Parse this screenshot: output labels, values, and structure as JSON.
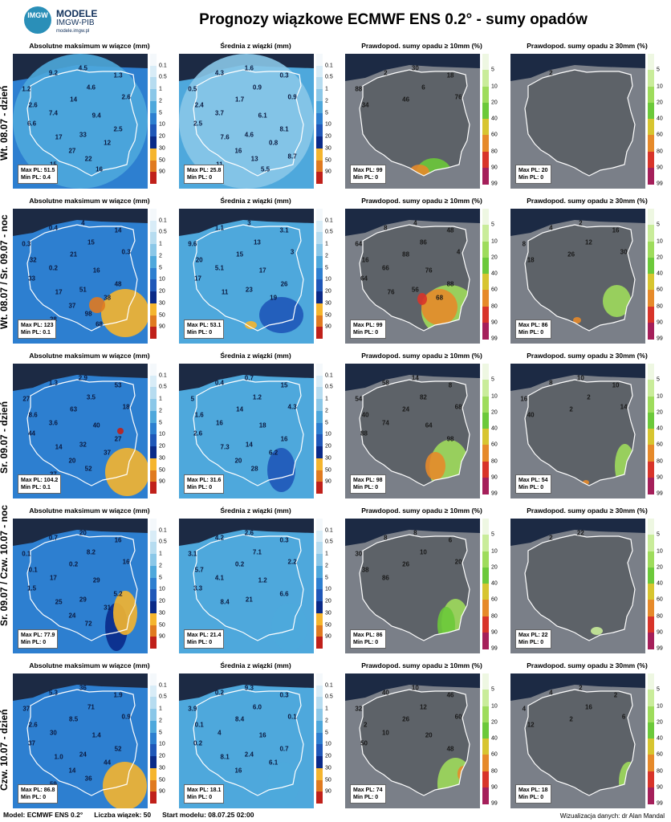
{
  "header": {
    "logo_text": "IMGW",
    "logo_line1": "MODELE",
    "logo_line2": "IMGW-PIB",
    "logo_line3": "modele.imgw.pl",
    "title": "Prognozy wiązkowe ECMWF ENS 0.2° - sumy opadów"
  },
  "colors": {
    "sea": "#1c2a44",
    "land_out": "#7a7f88",
    "border": "#ffffff"
  },
  "colorbars": {
    "precip": {
      "ticks": [
        "0.1",
        "0.5",
        "1",
        "2",
        "5",
        "10",
        "20",
        "30",
        "50",
        "90"
      ],
      "colors": [
        "#f4f8fb",
        "#d8ecf7",
        "#b6dcf0",
        "#8ac7e8",
        "#4ea8dc",
        "#2d7fd0",
        "#1f57b8",
        "#0a2a88",
        "#f5b52e",
        "#e07a20",
        "#c0201a"
      ]
    },
    "prob": {
      "ticks": [
        "5",
        "10",
        "20",
        "40",
        "60",
        "80",
        "90",
        "99"
      ],
      "colors": [
        "#eef7e2",
        "#c9ec9a",
        "#9edc5c",
        "#6cc93a",
        "#d7c530",
        "#e68a2a",
        "#d8342a",
        "#a51f5a"
      ]
    }
  },
  "rows": [
    {
      "label": "Wt. 08.07 - dzień",
      "panels": [
        {
          "title": "Absolutne maksimum w wiązce (mm)",
          "kind": "max",
          "max_pl": "Max PL: 51.5",
          "min_pl": "Min PL: 0.4",
          "values": [
            "9.2",
            "4.5",
            "1.3",
            "1.2",
            "4.6",
            "2.6",
            "14",
            "2.6",
            "7.4",
            "9.4",
            "6.6",
            "2.5",
            "17",
            "33",
            "12",
            "27",
            "22",
            "15",
            "16"
          ]
        },
        {
          "title": "Średnia z wiązki (mm)",
          "kind": "mean",
          "max_pl": "Max PL: 25.8",
          "min_pl": "Min PL: 0",
          "values": [
            "4.3",
            "1.6",
            "0.3",
            "0.5",
            "0.9",
            "0.9",
            "1.7",
            "2.4",
            "3.7",
            "6.1",
            "2.5",
            "8.1",
            "7.6",
            "4.6",
            "0.8",
            "16",
            "13",
            "11",
            "5.5",
            "8.7"
          ]
        },
        {
          "title": "Prawdopod. sumy opadu ≥ 10mm (%)",
          "kind": "prob10",
          "max_pl": "Max PL: 99",
          "min_pl": "Min PL: 0",
          "values": [
            "2",
            "30",
            "18",
            "88",
            "6",
            "76",
            "46",
            "34"
          ]
        },
        {
          "title": "Prawdopod. sumy opadu ≥ 30mm (%)",
          "kind": "prob30",
          "max_pl": "Max PL: 20",
          "min_pl": "Min PL: 0",
          "values": [
            "2"
          ]
        }
      ]
    },
    {
      "label": "Wt. 08.07 / Śr. 09.07 - noc",
      "panels": [
        {
          "title": "Absolutne maksimum w wiązce (mm)",
          "kind": "max",
          "max_pl": "Max PL: 123",
          "min_pl": "Min PL: 0.1",
          "values": [
            "0.4",
            "4",
            "14",
            "0.3",
            "15",
            "0.3",
            "21",
            "32",
            "0.2",
            "16",
            "33",
            "48",
            "17",
            "51",
            "38",
            "37",
            "98",
            "28",
            "68"
          ]
        },
        {
          "title": "Średnia z wiązki (mm)",
          "kind": "mean",
          "max_pl": "Max PL: 53.1",
          "min_pl": "Min PL: 0",
          "values": [
            "1.1",
            "3",
            "3.1",
            "9.6",
            "13",
            "3",
            "15",
            "20",
            "5.1",
            "17",
            "17",
            "26",
            "11",
            "23",
            "19"
          ]
        },
        {
          "title": "Prawdopod. sumy opadu ≥ 10mm (%)",
          "kind": "prob10",
          "max_pl": "Max PL: 99",
          "min_pl": "Min PL: 0",
          "values": [
            "8",
            "4",
            "48",
            "64",
            "86",
            "4",
            "88",
            "16",
            "66",
            "76",
            "64",
            "88",
            "76",
            "56",
            "68"
          ]
        },
        {
          "title": "Prawdopod. sumy opadu ≥ 30mm (%)",
          "kind": "prob30",
          "max_pl": "Max PL: 86",
          "min_pl": "Min PL: 0",
          "values": [
            "4",
            "2",
            "16",
            "8",
            "12",
            "30",
            "26",
            "18"
          ]
        }
      ]
    },
    {
      "label": "Śr. 09.07 - dzień",
      "panels": [
        {
          "title": "Absolutne maksimum w wiązce (mm)",
          "kind": "max",
          "max_pl": "Max PL: 104.2",
          "min_pl": "Min PL: 0.1",
          "values": [
            "1.3",
            "2.9",
            "53",
            "27",
            "3.5",
            "18",
            "63",
            "8.6",
            "3.6",
            "40",
            "44",
            "27",
            "14",
            "32",
            "37",
            "20",
            "52",
            "37"
          ]
        },
        {
          "title": "Średnia z wiązki (mm)",
          "kind": "mean",
          "max_pl": "Max PL: 31.6",
          "min_pl": "Min PL: 0",
          "values": [
            "0.4",
            "0.7",
            "15",
            "5",
            "1.2",
            "4.3",
            "14",
            "1.6",
            "16",
            "18",
            "2.6",
            "16",
            "7.3",
            "14",
            "6.2",
            "20",
            "28"
          ]
        },
        {
          "title": "Prawdopod. sumy opadu ≥ 10mm (%)",
          "kind": "prob10",
          "max_pl": "Max PL: 98",
          "min_pl": "Min PL: 0",
          "values": [
            "58",
            "14",
            "8",
            "54",
            "82",
            "68",
            "24",
            "40",
            "74",
            "64",
            "88",
            "98"
          ]
        },
        {
          "title": "Prawdopod. sumy opadu ≥ 30mm (%)",
          "kind": "prob30",
          "max_pl": "Max PL: 54",
          "min_pl": "Min PL: 0",
          "values": [
            "8",
            "10",
            "10",
            "16",
            "2",
            "14",
            "2",
            "40"
          ]
        }
      ]
    },
    {
      "label": "Śr. 09.07 / Czw. 10.07 - noc",
      "panels": [
        {
          "title": "Absolutne maksimum w wiązce (mm)",
          "kind": "max",
          "max_pl": "Max PL: 77.9",
          "min_pl": "Min PL: 0",
          "values": [
            "0.7",
            "20",
            "16",
            "0.1",
            "8.2",
            "16",
            "0.2",
            "0.1",
            "17",
            "29",
            "1.5",
            "5.2",
            "25",
            "29",
            "31",
            "24",
            "72"
          ]
        },
        {
          "title": "Średnia z wiązki (mm)",
          "kind": "mean",
          "max_pl": "Max PL: 21.4",
          "min_pl": "Min PL: 0",
          "values": [
            "4.2",
            "2.6",
            "0.3",
            "3.1",
            "7.1",
            "2.2",
            "0.2",
            "5.7",
            "4.1",
            "1.2",
            "3.3",
            "6.6",
            "8.4",
            "21"
          ]
        },
        {
          "title": "Prawdopod. sumy opadu ≥ 10mm (%)",
          "kind": "prob10",
          "max_pl": "Max PL: 86",
          "min_pl": "Min PL: 0",
          "values": [
            "8",
            "8",
            "6",
            "30",
            "10",
            "20",
            "26",
            "38",
            "86"
          ]
        },
        {
          "title": "Prawdopod. sumy opadu ≥ 30mm (%)",
          "kind": "prob30",
          "max_pl": "Max PL: 22",
          "min_pl": "Min PL: 0",
          "values": [
            "2",
            "22"
          ]
        }
      ]
    },
    {
      "label": "Czw. 10.07 - dzień",
      "panels": [
        {
          "title": "Absolutne maksimum w wiązce (mm)",
          "kind": "max",
          "max_pl": "Max PL: 86.8",
          "min_pl": "Min PL: 0",
          "values": [
            "5.3",
            "36",
            "1.9",
            "37",
            "71",
            "0.9",
            "8.5",
            "2.6",
            "30",
            "1.4",
            "37",
            "52",
            "1.0",
            "24",
            "44",
            "14",
            "36",
            "59"
          ]
        },
        {
          "title": "Średnia z wiązki (mm)",
          "kind": "mean",
          "max_pl": "Max PL: 18.1",
          "min_pl": "Min PL: 0",
          "values": [
            "0.2",
            "9.3",
            "0.3",
            "3.9",
            "6.0",
            "0.1",
            "8.4",
            "0.1",
            "4",
            "16",
            "0.2",
            "0.7",
            "8.1",
            "2.4",
            "6.1",
            "16"
          ]
        },
        {
          "title": "Prawdopod. sumy opadu ≥ 10mm (%)",
          "kind": "prob10",
          "max_pl": "Max PL: 74",
          "min_pl": "Min PL: 0",
          "values": [
            "40",
            "10",
            "46",
            "32",
            "12",
            "60",
            "26",
            "2",
            "10",
            "20",
            "50",
            "48"
          ]
        },
        {
          "title": "Prawdopod. sumy opadu ≥ 30mm (%)",
          "kind": "prob30",
          "max_pl": "Max PL: 18",
          "min_pl": "Min PL: 0",
          "values": [
            "4",
            "2",
            "2",
            "4",
            "16",
            "6",
            "2",
            "12"
          ]
        }
      ]
    }
  ],
  "footer": {
    "model": "Model: ECMWF ENS 0.2°",
    "members": "Liczba wiązek: 50",
    "start": "Start modelu: 08.07.25 02:00",
    "credit": "Wizualizacja danych: dr Alan Mandal"
  }
}
